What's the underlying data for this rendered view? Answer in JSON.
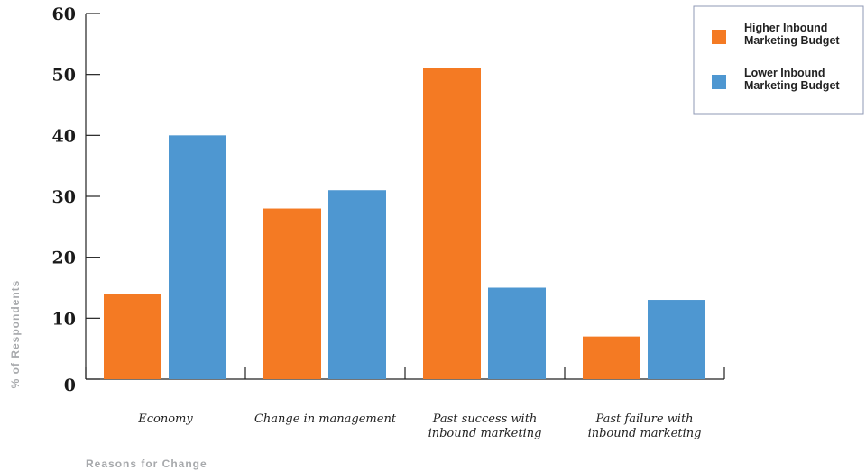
{
  "chart_data": {
    "type": "bar",
    "title": "",
    "xlabel": "Reasons for Change",
    "ylabel": "% of Respondents",
    "ylim": [
      0,
      60
    ],
    "yticks": [
      0,
      10,
      20,
      30,
      40,
      50,
      60
    ],
    "ytick_labels": [
      "0",
      "10",
      "20",
      "30",
      "40",
      "50",
      "60"
    ],
    "categories": [
      [
        "Economy"
      ],
      [
        "Change in management"
      ],
      [
        "Past success with",
        "inbound marketing"
      ],
      [
        "Past failure with",
        "inbound marketing"
      ]
    ],
    "series": [
      {
        "name": [
          "Higher Inbound",
          "Marketing Budget"
        ],
        "color": "#f47a23",
        "values": [
          14,
          28,
          51,
          7
        ]
      },
      {
        "name": [
          "Lower Inbound",
          "Marketing Budget"
        ],
        "color": "#4e97d1",
        "values": [
          40,
          31,
          15,
          13
        ]
      }
    ],
    "grid": false,
    "legend_position": "top-right"
  }
}
